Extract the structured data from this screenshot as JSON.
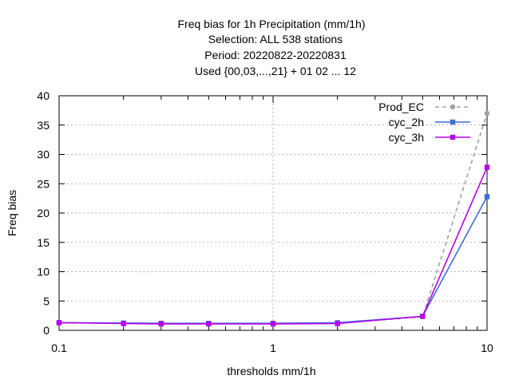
{
  "chart_data": {
    "type": "line",
    "title_lines": [
      "Freq bias  for 1h Precipitation (mm/1h)",
      "Selection: ALL    538 stations",
      "Period: 20220822-20220831",
      "Used {00,03,...,21} + 01 02 ... 12"
    ],
    "xlabel": "thresholds mm/1h",
    "ylabel": "Freq bias",
    "x_scale": "log",
    "xlim": [
      0.1,
      10
    ],
    "ylim": [
      0,
      40
    ],
    "x_ticks": [
      0.1,
      1,
      10
    ],
    "x_tick_labels": [
      "0.1",
      "1",
      "10"
    ],
    "y_ticks": [
      0,
      5,
      10,
      15,
      20,
      25,
      30,
      35,
      40
    ],
    "y_tick_labels": [
      "0",
      "5",
      "10",
      "15",
      "20",
      "25",
      "30",
      "35",
      "40"
    ],
    "grid": true,
    "legend_position": "top-right",
    "x": [
      0.1,
      0.2,
      0.3,
      0.5,
      1,
      2,
      5,
      10
    ],
    "series": [
      {
        "name": "Prod_EC",
        "color": "#a0a0a4",
        "dash": "dashed",
        "marker": "circle",
        "values": [
          1.3,
          1.2,
          1.15,
          1.15,
          1.15,
          1.2,
          2.3,
          37.0
        ]
      },
      {
        "name": "cyc_2h",
        "color": "#3a6fd8",
        "dash": "solid",
        "marker": "square",
        "values": [
          1.3,
          1.25,
          1.2,
          1.2,
          1.2,
          1.3,
          2.4,
          22.8
        ]
      },
      {
        "name": "cyc_3h",
        "color": "#b800e8",
        "dash": "solid",
        "marker": "square",
        "values": [
          1.3,
          1.15,
          1.1,
          1.1,
          1.1,
          1.15,
          2.4,
          27.8
        ]
      }
    ]
  }
}
